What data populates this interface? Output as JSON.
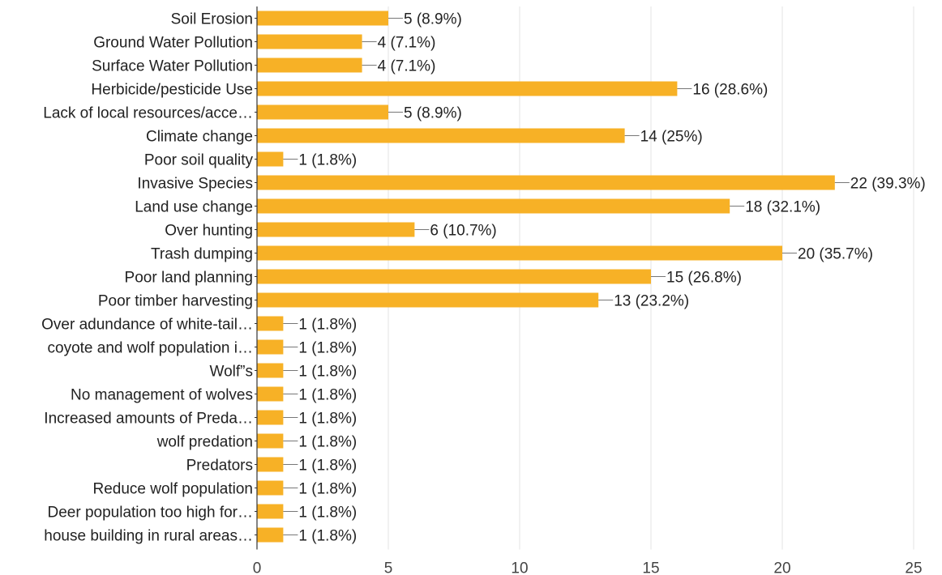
{
  "chart_data": {
    "type": "bar",
    "orientation": "horizontal",
    "title": "",
    "xlabel": "",
    "ylabel": "",
    "xlim": [
      0,
      25
    ],
    "ticks": [
      0,
      5,
      10,
      15,
      20,
      25
    ],
    "grid": true,
    "bar_color": "#f7b126",
    "categories": [
      "Soil Erosion",
      "Ground Water Pollution",
      "Surface Water Pollution",
      "Herbicide/pesticide Use",
      "Lack of local resources/acce…",
      "Climate change",
      "Poor soil quality",
      "Invasive Species",
      "Land use change",
      "Over hunting",
      "Trash dumping",
      "Poor land planning",
      "Poor timber harvesting",
      "Over adundance of white-tail…",
      "coyote and wolf population i…",
      "Wolf”s",
      "No management of wolves",
      "Increased amounts of Preda…",
      "wolf predation",
      "Predators",
      "Reduce wolf population",
      "Deer population too high for…",
      "house building in rural areas…"
    ],
    "values": [
      5,
      4,
      4,
      16,
      5,
      14,
      1,
      22,
      18,
      6,
      20,
      15,
      13,
      1,
      1,
      1,
      1,
      1,
      1,
      1,
      1,
      1,
      1
    ],
    "value_labels": [
      "5 (8.9%)",
      "4 (7.1%)",
      "4 (7.1%)",
      "16 (28.6%)",
      "5 (8.9%)",
      "14 (25%)",
      "1 (1.8%)",
      "22 (39.3%)",
      "18 (32.1%)",
      "6 (10.7%)",
      "20 (35.7%)",
      "15 (26.8%)",
      "13 (23.2%)",
      "1 (1.8%)",
      "1 (1.8%)",
      "1 (1.8%)",
      "1 (1.8%)",
      "1 (1.8%)",
      "1 (1.8%)",
      "1 (1.8%)",
      "1 (1.8%)",
      "1 (1.8%)",
      "1 (1.8%)"
    ]
  }
}
